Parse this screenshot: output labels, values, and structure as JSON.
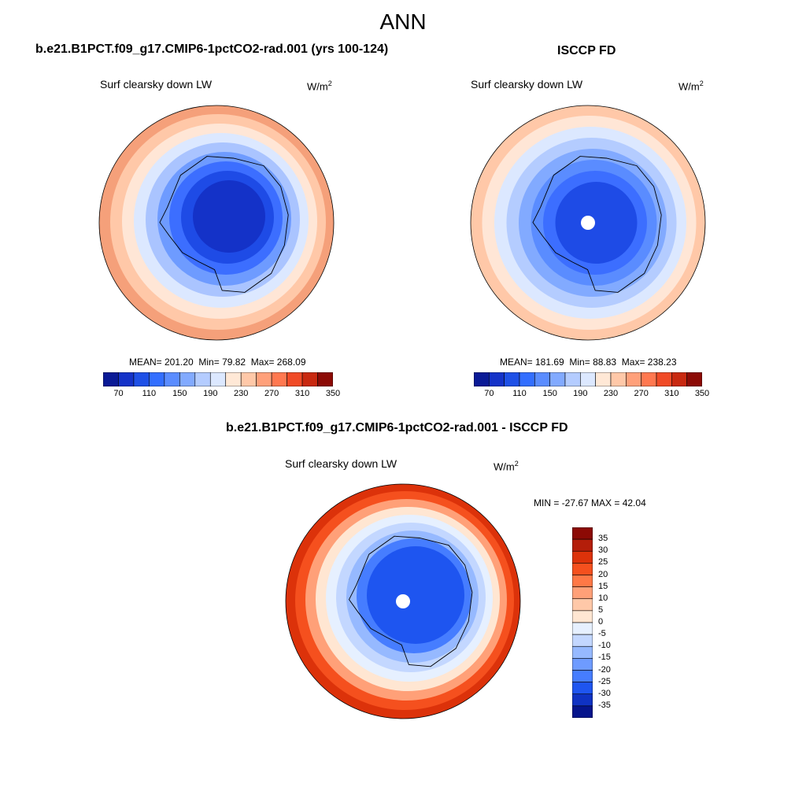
{
  "title": "ANN",
  "panels": [
    {
      "case_title": "b.e21.B1PCT.f09_g17.CMIP6-1pctCO2-rad.001 (yrs 100-124)",
      "variable": "Surf clearsky down LW",
      "units_base": "W/m",
      "units_exp": "2",
      "mean_text": "MEAN= 201.20",
      "min_text": "Min=  79.82",
      "max_text": "Max= 268.09"
    },
    {
      "case_title": "ISCCP FD",
      "variable": "Surf clearsky down LW",
      "units_base": "W/m",
      "units_exp": "2",
      "mean_text": "MEAN= 181.69",
      "min_text": "Min=  88.83",
      "max_text": "Max= 238.23"
    },
    {
      "case_title": "b.e21.B1PCT.f09_g17.CMIP6-1pctCO2-rad.001 - ISCCP FD",
      "variable": "Surf clearsky down LW",
      "units_base": "W/m",
      "units_exp": "2",
      "minmax_text": "MIN = -27.67 MAX =  42.04"
    }
  ],
  "abs_colorbar": {
    "colors": [
      "#0a1a96",
      "#1432c8",
      "#1e50e6",
      "#326eff",
      "#5a8cff",
      "#82aaff",
      "#b4ccff",
      "#dce8ff",
      "#ffe8d6",
      "#ffc8a8",
      "#ffa07a",
      "#ff7850",
      "#f04a26",
      "#c8280f",
      "#8c0a05"
    ],
    "tick_labels": [
      "70",
      "110",
      "150",
      "190",
      "230",
      "270",
      "310",
      "350"
    ]
  },
  "diff_colorbar": {
    "colors": [
      "#8c0a05",
      "#b41e0a",
      "#dc320a",
      "#f5501e",
      "#ff7846",
      "#ffa078",
      "#ffc8a8",
      "#ffe6d2",
      "#e6f0ff",
      "#c3d7ff",
      "#96b9ff",
      "#6e9bff",
      "#467dff",
      "#1e55f0",
      "#0f32c3",
      "#05148c"
    ],
    "tick_labels": [
      "35",
      "30",
      "25",
      "20",
      "15",
      "10",
      "5",
      "0",
      "-5",
      "-10",
      "-15",
      "-20",
      "-25",
      "-30",
      "-35"
    ]
  },
  "maps": {
    "model_colors": [
      "#f5a07a",
      "#ffc8a8",
      "#ffe6d6",
      "#dce8ff",
      "#aac4ff",
      "#6e9bff",
      "#3c6eff",
      "#1e4be6",
      "#1432c8"
    ],
    "obs_colors": [
      "#ffc8a8",
      "#ffe6d6",
      "#dce8ff",
      "#b4ccff",
      "#82aaff",
      "#5a8cff",
      "#3c6eff",
      "#1e4be6"
    ],
    "diff_colors": [
      "#dc320a",
      "#f5501e",
      "#ffa078",
      "#ffe6d2",
      "#e6f0ff",
      "#c3d7ff",
      "#96b9ff",
      "#467dff",
      "#1e55f0"
    ],
    "pole_hole_color": "#ffffff",
    "outline_color": "#000000"
  }
}
